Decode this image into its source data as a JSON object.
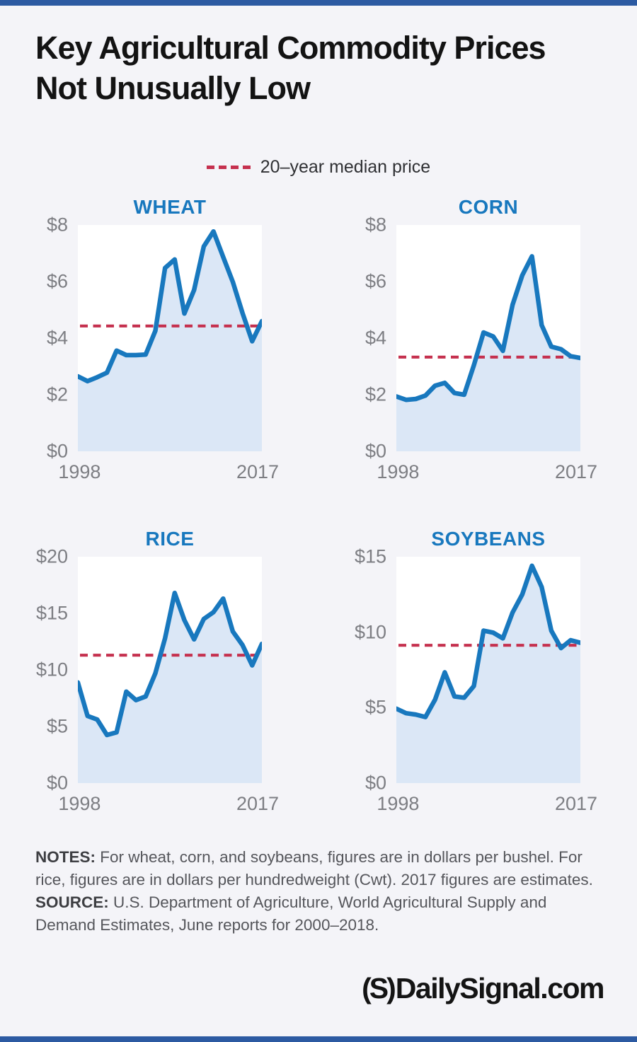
{
  "page": {
    "title_lines": [
      "Key Agricultural Commodity Prices",
      "Not Unusually Low"
    ],
    "legend_label": "20–year median price",
    "notes_label": "NOTES:",
    "notes_text": " For wheat, corn, and soybeans, figures are in dollars per bushel. For rice, figures are in dollars per hundredweight (Cwt). 2017 figures are estimates.",
    "source_label": "SOURCE:",
    "source_text": " U.S. Department of Agriculture, World Agricultural Supply and Demand Estimates, June reports for 2000–2018.",
    "logo_mark": "(S)",
    "logo_text": "DailySignal.com"
  },
  "colors": {
    "accent_bar": "#2c5aa2",
    "line_blue": "#1878be",
    "median_red": "#c5304e",
    "area_fill": "#dbe7f6",
    "plot_background": "#ffffff",
    "page_background": "#f4f4f8",
    "axis_gray": "#7d7e83",
    "chart_title_blue": "#1878be"
  },
  "chart_data": [
    {
      "type": "line",
      "title": "WHEAT",
      "x": [
        1998,
        1999,
        2000,
        2001,
        2002,
        2003,
        2004,
        2005,
        2006,
        2007,
        2008,
        2009,
        2010,
        2011,
        2012,
        2013,
        2014,
        2015,
        2016,
        2017
      ],
      "values": [
        2.65,
        2.48,
        2.62,
        2.78,
        3.56,
        3.4,
        3.4,
        3.42,
        4.26,
        6.48,
        6.78,
        4.87,
        5.7,
        7.24,
        7.77,
        6.87,
        5.99,
        4.89,
        3.89,
        4.6
      ],
      "median": 4.43,
      "ylim": [
        0,
        8
      ],
      "yticks": [
        {
          "label": "$8",
          "value": 8
        },
        {
          "label": "$6",
          "value": 6
        },
        {
          "label": "$4",
          "value": 4
        },
        {
          "label": "$2",
          "value": 2
        },
        {
          "label": "$0",
          "value": 0
        }
      ],
      "x_first_label": "1998",
      "x_last_label": "2017",
      "grid": false,
      "legend_position": "top-center-shared"
    },
    {
      "type": "line",
      "title": "CORN",
      "x": [
        1998,
        1999,
        2000,
        2001,
        2002,
        2003,
        2004,
        2005,
        2006,
        2007,
        2008,
        2009,
        2010,
        2011,
        2012,
        2013,
        2014,
        2015,
        2016,
        2017
      ],
      "values": [
        1.94,
        1.82,
        1.85,
        1.97,
        2.32,
        2.42,
        2.06,
        2.0,
        3.04,
        4.2,
        4.06,
        3.55,
        5.18,
        6.22,
        6.89,
        4.46,
        3.7,
        3.61,
        3.36,
        3.3
      ],
      "median": 3.33,
      "ylim": [
        0,
        8
      ],
      "yticks": [
        {
          "label": "$8",
          "value": 8
        },
        {
          "label": "$6",
          "value": 6
        },
        {
          "label": "$4",
          "value": 4
        },
        {
          "label": "$2",
          "value": 2
        },
        {
          "label": "$0",
          "value": 0
        }
      ],
      "x_first_label": "1998",
      "x_last_label": "2017",
      "grid": false,
      "legend_position": "top-center-shared"
    },
    {
      "type": "line",
      "title": "RICE",
      "x": [
        1998,
        1999,
        2000,
        2001,
        2002,
        2003,
        2004,
        2005,
        2006,
        2007,
        2008,
        2009,
        2010,
        2011,
        2012,
        2013,
        2014,
        2015,
        2016,
        2017
      ],
      "values": [
        8.89,
        5.93,
        5.61,
        4.25,
        4.49,
        8.08,
        7.33,
        7.65,
        9.7,
        12.8,
        16.8,
        14.4,
        12.7,
        14.5,
        15.1,
        16.3,
        13.4,
        12.2,
        10.4,
        12.3
      ],
      "median": 11.3,
      "ylim": [
        0,
        20
      ],
      "yticks": [
        {
          "label": "$20",
          "value": 20
        },
        {
          "label": "$15",
          "value": 15
        },
        {
          "label": "$10",
          "value": 10
        },
        {
          "label": "$5",
          "value": 5
        },
        {
          "label": "$0",
          "value": 0
        }
      ],
      "x_first_label": "1998",
      "x_last_label": "2017",
      "grid": false,
      "legend_position": "top-center-shared"
    },
    {
      "type": "line",
      "title": "SOYBEANS",
      "x": [
        1998,
        1999,
        2000,
        2001,
        2002,
        2003,
        2004,
        2005,
        2006,
        2007,
        2008,
        2009,
        2010,
        2011,
        2012,
        2013,
        2014,
        2015,
        2016,
        2017
      ],
      "values": [
        4.93,
        4.63,
        4.54,
        4.38,
        5.53,
        7.34,
        5.74,
        5.66,
        6.43,
        10.1,
        9.97,
        9.59,
        11.3,
        12.5,
        14.4,
        13.0,
        10.1,
        8.95,
        9.47,
        9.3
      ],
      "median": 9.13,
      "ylim": [
        0,
        15
      ],
      "yticks": [
        {
          "label": "$15",
          "value": 15
        },
        {
          "label": "$10",
          "value": 10
        },
        {
          "label": "$5",
          "value": 5
        },
        {
          "label": "$0",
          "value": 0
        }
      ],
      "x_first_label": "1998",
      "x_last_label": "2017",
      "grid": false,
      "legend_position": "top-center-shared"
    }
  ]
}
